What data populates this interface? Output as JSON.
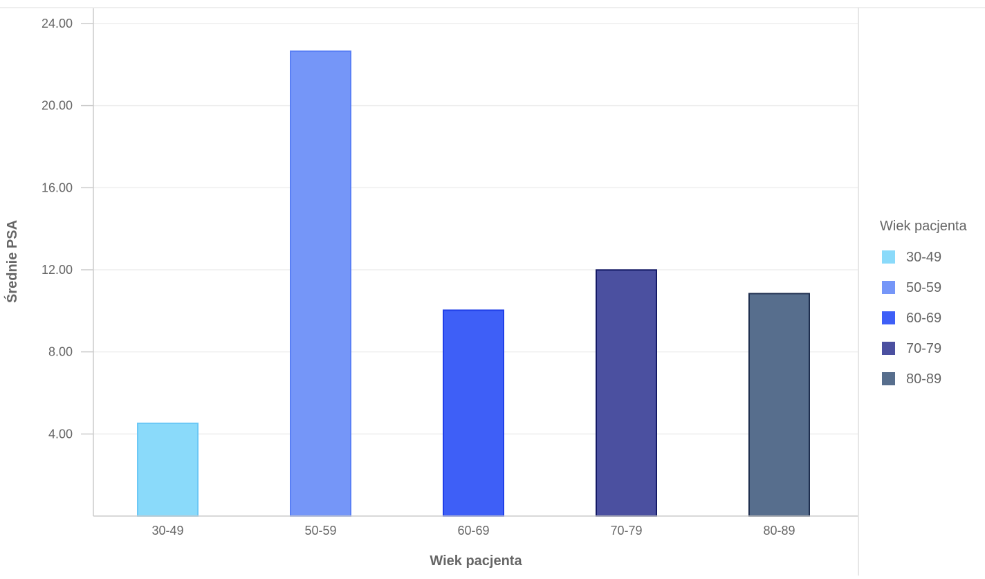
{
  "chart_data": {
    "type": "bar",
    "categories": [
      "30-49",
      "50-59",
      "60-69",
      "70-79",
      "80-89"
    ],
    "values": [
      4.52,
      22.65,
      10.03,
      11.99,
      10.84
    ],
    "colors": [
      "#8adafa",
      "#7596f8",
      "#3e5ff7",
      "#4b50a0",
      "#576e8d"
    ],
    "stroke_colors": [
      "#6cc8f5",
      "#5a80f5",
      "#1f3fe8",
      "#141a66",
      "#1f2f4f"
    ],
    "xlabel": "Wiek pacjenta",
    "ylabel": "Średnie PSA",
    "ylim": [
      0,
      24
    ],
    "yticks": [
      {
        "value": 4,
        "label": "4.00"
      },
      {
        "value": 8,
        "label": "8.00"
      },
      {
        "value": 12,
        "label": "12.00"
      },
      {
        "value": 16,
        "label": "16.00"
      },
      {
        "value": 20,
        "label": "20.00"
      },
      {
        "value": 24,
        "label": "24.00"
      }
    ],
    "grid": true,
    "legend": {
      "title": "Wiek pacjenta",
      "placement": "right",
      "items": [
        "30-49",
        "50-59",
        "60-69",
        "70-79",
        "80-89"
      ]
    }
  }
}
